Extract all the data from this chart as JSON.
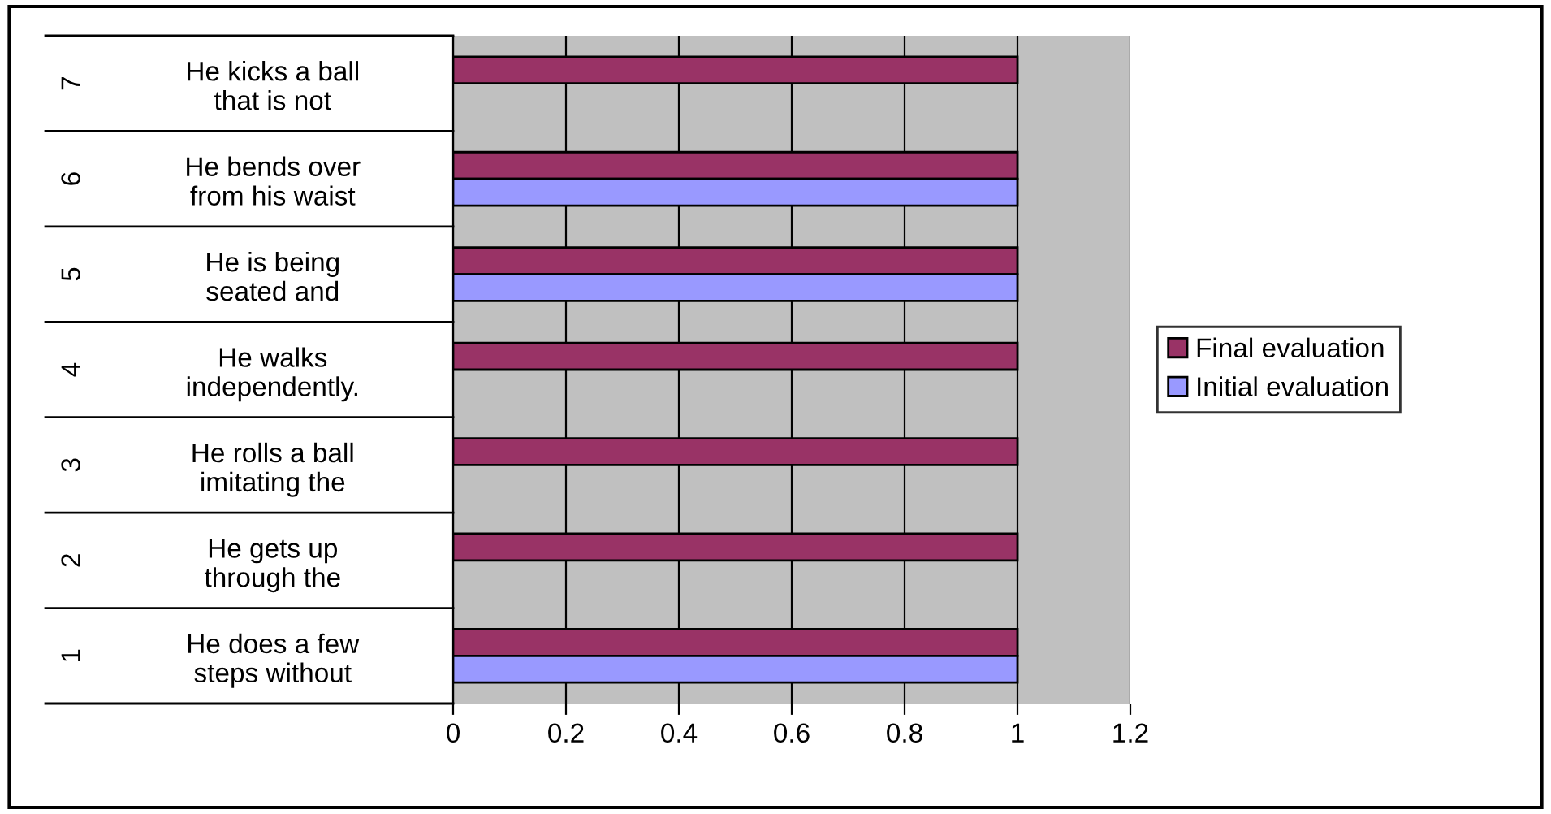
{
  "chart_data": {
    "type": "bar",
    "orientation": "horizontal",
    "categories": [
      "He kicks a ball\nthat is not",
      "He bends over\nfrom his waist",
      "He is being\nseated and",
      "He walks\nindependently.",
      "He rolls a ball\nimitating the",
      "He gets up\nthrough the",
      "He does a few\nsteps without"
    ],
    "annotations": [
      "7",
      "6",
      "5",
      "4",
      "3",
      "2",
      "1"
    ],
    "series": [
      {
        "name": "Final evaluation",
        "color": "#993366",
        "values": [
          1,
          1,
          1,
          1,
          1,
          1,
          1
        ]
      },
      {
        "name": "Initial evaluation",
        "color": "#9999ff",
        "values": [
          null,
          1,
          1,
          null,
          null,
          null,
          1
        ]
      }
    ],
    "xlim": [
      0,
      1.2
    ],
    "xticks": [
      0,
      0.2,
      0.4,
      0.6,
      0.8,
      1,
      1.2
    ],
    "grid": "x",
    "legend": "right"
  }
}
